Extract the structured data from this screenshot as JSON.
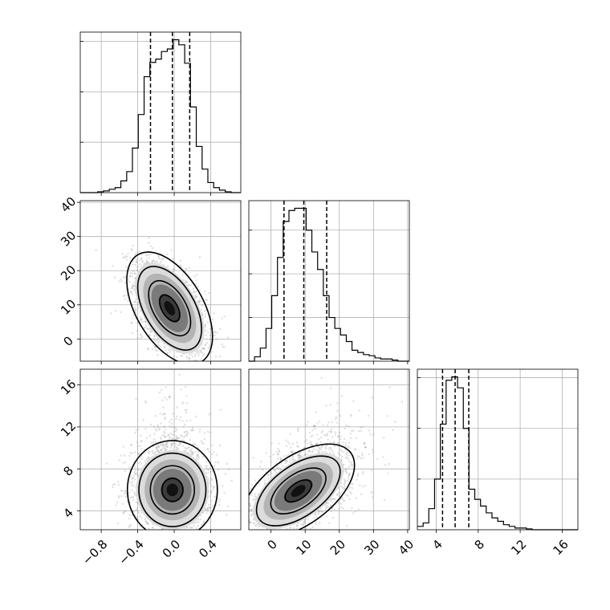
{
  "chart_data": {
    "type": "corner",
    "title": "",
    "parameters": [
      {
        "ticks": [
          -0.8,
          -0.4,
          0.0,
          0.4
        ],
        "tick_labels": [
          "−0.8",
          "−0.4",
          "0.0",
          "0.4"
        ],
        "range": [
          -1.03,
          0.73
        ]
      },
      {
        "ticks": [
          0,
          10,
          20,
          30,
          40
        ],
        "tick_labels": [
          "0",
          "10",
          "20",
          "30",
          "40"
        ],
        "range": [
          -6.5,
          40.5
        ]
      },
      {
        "ticks": [
          4,
          8,
          12,
          16
        ],
        "tick_labels": [
          "4",
          "8",
          "12",
          "16"
        ],
        "range": [
          2.2,
          17.5
        ]
      }
    ],
    "histograms": [
      {
        "edges": [
          -1.03,
          -0.966,
          -0.903,
          -0.839,
          -0.776,
          -0.712,
          -0.648,
          -0.585,
          -0.521,
          -0.458,
          -0.394,
          -0.33,
          -0.267,
          -0.203,
          -0.14,
          -0.076,
          -0.012,
          0.051,
          0.115,
          0.178,
          0.242,
          0.306,
          0.369,
          0.433,
          0.496,
          0.56,
          0.624,
          0.687,
          0.73
        ],
        "counts": [
          0,
          0,
          0,
          1,
          2,
          4,
          6,
          14,
          25,
          53,
          93,
          138,
          155,
          159,
          168,
          171,
          182,
          176,
          154,
          102,
          55,
          28,
          12,
          6,
          3,
          1,
          0,
          0
        ],
        "quantiles": [
          -0.26,
          -0.02,
          0.17
        ]
      },
      {
        "edges": [
          -6.5,
          -4.82,
          -3.14,
          -1.46,
          0.21,
          1.89,
          3.57,
          5.25,
          6.93,
          8.61,
          10.29,
          11.96,
          13.64,
          15.32,
          17.0,
          18.68,
          20.36,
          22.04,
          23.71,
          25.39,
          27.07,
          28.75,
          30.43,
          32.11,
          33.79,
          35.46,
          37.14,
          38.82,
          40.5
        ],
        "counts": [
          0,
          4,
          12,
          30,
          60,
          95,
          128,
          138,
          140,
          140,
          120,
          100,
          84,
          60,
          40,
          30,
          24,
          18,
          10,
          8,
          6,
          5,
          3,
          2,
          2,
          1,
          0,
          0
        ],
        "quantiles": [
          3.8,
          9.6,
          16.3
        ]
      },
      {
        "edges": [
          2.2,
          2.75,
          3.29,
          3.84,
          4.39,
          4.94,
          5.48,
          6.03,
          6.58,
          7.12,
          7.67,
          8.22,
          8.76,
          9.31,
          9.86,
          10.41,
          10.95,
          11.5,
          12.05,
          12.59,
          13.14,
          13.69,
          14.24,
          14.78,
          15.33,
          15.88,
          16.42,
          16.97,
          17.5
        ],
        "counts": [
          4,
          8,
          25,
          60,
          125,
          177,
          181,
          168,
          120,
          48,
          36,
          28,
          20,
          14,
          10,
          6,
          4,
          2,
          2,
          1,
          0,
          0,
          0,
          0,
          0,
          0,
          0,
          0
        ],
        "quantiles": [
          4.6,
          5.8,
          7.1
        ]
      }
    ],
    "joint": [
      {
        "x": 0,
        "y": 1,
        "center": [
          -0.05,
          9.0
        ],
        "sigma": [
          0.2,
          7.0
        ],
        "rho": -0.5
      },
      {
        "x": 0,
        "y": 2,
        "center": [
          -0.02,
          6.0
        ],
        "sigma": [
          0.21,
          2.0
        ],
        "rho": 0.0
      },
      {
        "x": 1,
        "y": 2,
        "center": [
          8.0,
          5.9
        ],
        "sigma": [
          7.0,
          1.9
        ],
        "rho": 0.55
      }
    ]
  }
}
